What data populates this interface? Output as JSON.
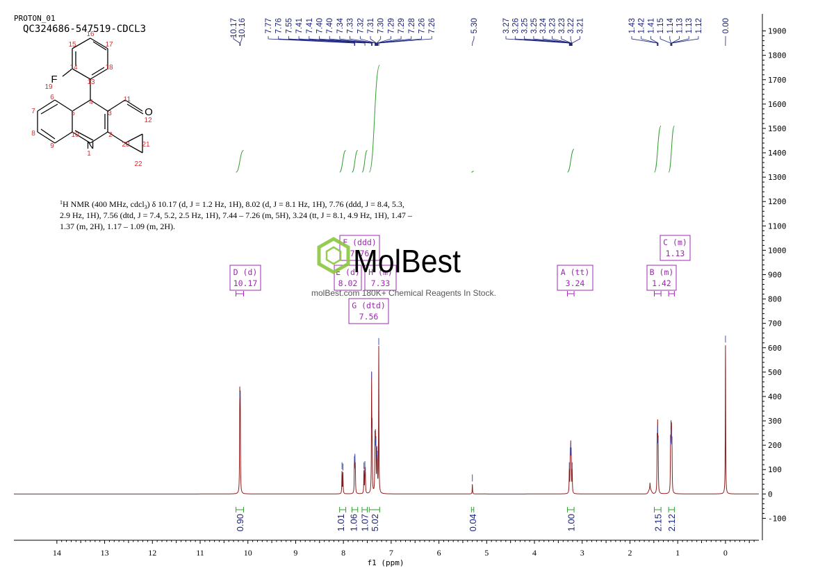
{
  "header": {
    "experiment": "PROTON_01",
    "sample_id": "QC324686-547519-CDCL3"
  },
  "nmr_description": {
    "line1_pre": "H NMR (400 MHz, cdcl",
    "line1_sub": "3",
    "line1_post": ") δ 10.17 (d, J = 1.2 Hz, 1H), 8.02 (d, J = 8.1 Hz, 1H), 7.76 (ddd, J = 8.4, 5.3,",
    "sup": "1",
    "line2": "2.9 Hz, 1H), 7.56 (dtd, J = 7.4, 5.2, 2.5 Hz, 1H), 7.44 – 7.26 (m, 5H), 3.24 (tt, J = 8.1, 4.9 Hz, 1H), 1.47 –",
    "line3": "1.37 (m, 2H), 1.17 – 1.09 (m, 2H)."
  },
  "watermark": {
    "brand": "MolBest",
    "tagline": "molBest.com 180K+ Chemical Reagents In Stock."
  },
  "molecule": {
    "atom_labels": [
      "1",
      "2",
      "3",
      "4",
      "5",
      "6",
      "7",
      "8",
      "9",
      "10",
      "11",
      "12",
      "13",
      "14",
      "15",
      "16",
      "17",
      "18",
      "19",
      "20",
      "21",
      "22"
    ],
    "element_N": "N",
    "element_O": "O",
    "element_F": "F"
  },
  "peak_labels": [
    "10.17",
    "10.16",
    "7.77",
    "7.76",
    "7.55",
    "7.41",
    "7.41",
    "7.40",
    "7.40",
    "7.34",
    "7.33",
    "7.32",
    "7.31",
    "7.30",
    "7.29",
    "7.29",
    "7.28",
    "7.26",
    "7.26",
    "5.30",
    "3.27",
    "3.26",
    "3.25",
    "3.25",
    "3.24",
    "3.23",
    "3.23",
    "3.22",
    "3.21",
    "1.43",
    "1.42",
    "1.41",
    "1.15",
    "1.14",
    "1.13",
    "1.13",
    "1.12",
    "0.00"
  ],
  "multiplets": [
    {
      "letter": "D",
      "mult": "(d)",
      "shift": "10.17"
    },
    {
      "letter": "F",
      "mult": "(ddd)",
      "shift": "7.76"
    },
    {
      "letter": "E",
      "mult": "(d)",
      "shift": "8.02"
    },
    {
      "letter": "H",
      "mult": "(m)",
      "shift": "7.33"
    },
    {
      "letter": "G",
      "mult": "(dtd)",
      "shift": "7.56"
    },
    {
      "letter": "A",
      "mult": "(tt)",
      "shift": "3.24"
    },
    {
      "letter": "B",
      "mult": "(m)",
      "shift": "1.42"
    },
    {
      "letter": "C",
      "mult": "(m)",
      "shift": "1.13"
    }
  ],
  "chart_data": {
    "type": "line",
    "xlabel": "f1 (ppm)",
    "x_reversed": true,
    "xlim": [
      14.9,
      -0.7
    ],
    "ylim": [
      -190,
      1970
    ],
    "x_ticks": [
      "14",
      "13",
      "12",
      "11",
      "10",
      "9",
      "8",
      "7",
      "6",
      "5",
      "4",
      "3",
      "2",
      "1",
      "0"
    ],
    "y_ticks": [
      "-100",
      "0",
      "100",
      "200",
      "300",
      "400",
      "500",
      "600",
      "700",
      "800",
      "900",
      "1000",
      "1100",
      "1200",
      "1300",
      "1400",
      "1500",
      "1600",
      "1700",
      "1800",
      "1900"
    ],
    "peaks": [
      {
        "ppm": 10.17,
        "height": 380
      },
      {
        "ppm": 10.16,
        "height": 360
      },
      {
        "ppm": 8.03,
        "height": 90
      },
      {
        "ppm": 8.01,
        "height": 85
      },
      {
        "ppm": 7.77,
        "height": 115
      },
      {
        "ppm": 7.76,
        "height": 125
      },
      {
        "ppm": 7.75,
        "height": 90
      },
      {
        "ppm": 7.57,
        "height": 90
      },
      {
        "ppm": 7.55,
        "height": 95
      },
      {
        "ppm": 7.54,
        "height": 70
      },
      {
        "ppm": 7.41,
        "height": 460
      },
      {
        "ppm": 7.4,
        "height": 230
      },
      {
        "ppm": 7.34,
        "height": 210
      },
      {
        "ppm": 7.33,
        "height": 190
      },
      {
        "ppm": 7.32,
        "height": 180
      },
      {
        "ppm": 7.3,
        "height": 150
      },
      {
        "ppm": 7.29,
        "height": 130
      },
      {
        "ppm": 7.26,
        "height": 600
      },
      {
        "ppm": 5.3,
        "height": 40
      },
      {
        "ppm": 3.27,
        "height": 90
      },
      {
        "ppm": 3.25,
        "height": 150
      },
      {
        "ppm": 3.24,
        "height": 165
      },
      {
        "ppm": 3.23,
        "height": 150
      },
      {
        "ppm": 3.21,
        "height": 90
      },
      {
        "ppm": 1.58,
        "height": 25
      },
      {
        "ppm": 1.43,
        "height": 200
      },
      {
        "ppm": 1.42,
        "height": 240
      },
      {
        "ppm": 1.41,
        "height": 190
      },
      {
        "ppm": 1.15,
        "height": 190
      },
      {
        "ppm": 1.14,
        "height": 225
      },
      {
        "ppm": 1.13,
        "height": 215
      },
      {
        "ppm": 1.12,
        "height": 185
      },
      {
        "ppm": 0.0,
        "height": 610
      }
    ],
    "integrals": [
      {
        "from": 10.25,
        "to": 10.09,
        "value": "0.90",
        "start": 1320,
        "end": 1410
      },
      {
        "from": 8.08,
        "to": 7.95,
        "value": "1.01",
        "start": 1320,
        "end": 1410
      },
      {
        "from": 7.82,
        "to": 7.7,
        "value": "1.06",
        "start": 1320,
        "end": 1410
      },
      {
        "from": 7.61,
        "to": 7.5,
        "value": "1.07",
        "start": 1320,
        "end": 1410
      },
      {
        "from": 7.46,
        "to": 7.24,
        "value": "5.02",
        "start": 1320,
        "end": 1760
      },
      {
        "from": 5.32,
        "to": 5.27,
        "value": "0.04",
        "start": 1320,
        "end": 1325
      },
      {
        "from": 3.31,
        "to": 3.17,
        "value": "1.00",
        "start": 1320,
        "end": 1415
      },
      {
        "from": 1.49,
        "to": 1.35,
        "value": "2.15",
        "start": 1320,
        "end": 1510
      },
      {
        "from": 1.19,
        "to": 1.07,
        "value": "2.12",
        "start": 1320,
        "end": 1510
      }
    ],
    "colors": {
      "spectrum": "#8b1a1a",
      "integral": "#2e9e2e",
      "peak_label": "#1a237e",
      "multiplet_box": "#9c27b0",
      "axis": "#000000"
    }
  }
}
